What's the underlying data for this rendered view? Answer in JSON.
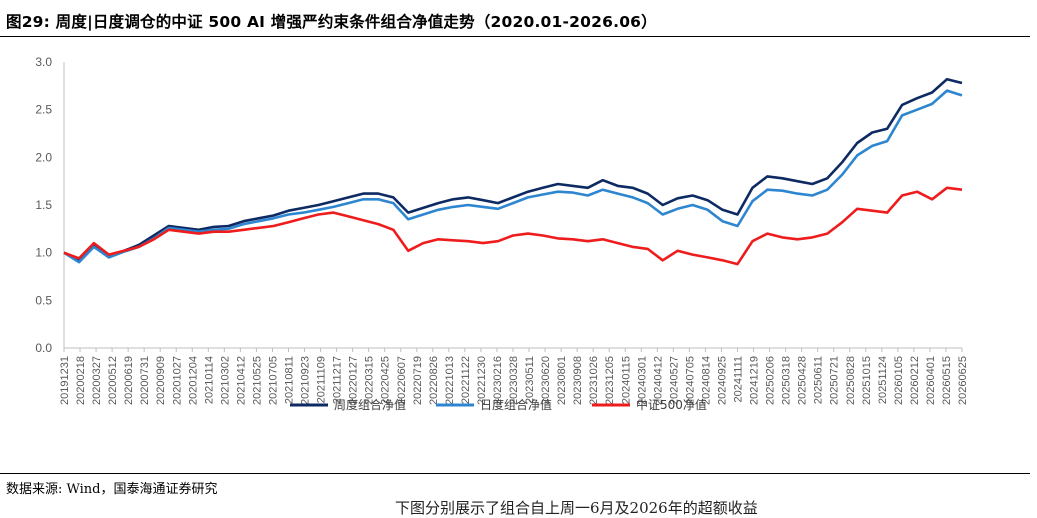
{
  "figure": {
    "title": "图29:  周度|日度调仓的中证 500 AI 增强严约束条件组合净值走势（2020.01-2026.06）",
    "source": "数据来源:  Wind，国泰海通证券研究",
    "footer_partial": "下图分别展示了组合自上周一6月及2026年的超额收益"
  },
  "chart_data": {
    "type": "line",
    "title": "",
    "xlabel": "",
    "ylabel": "",
    "ylim": [
      0.0,
      3.0
    ],
    "yticks": [
      "0.0",
      "0.5",
      "1.0",
      "1.5",
      "2.0",
      "2.5",
      "3.0"
    ],
    "x_tick_labels": [
      "20191231",
      "20200218",
      "20200327",
      "20200512",
      "20200619",
      "20200731",
      "20200909",
      "20201027",
      "20201204",
      "20210114",
      "20210302",
      "20210412",
      "20210525",
      "20210705",
      "20210811",
      "20210923",
      "20211109",
      "20211217",
      "20220127",
      "20220315",
      "20220425",
      "20220607",
      "20220719",
      "20220826",
      "20221013",
      "20221122",
      "20221230",
      "20230216",
      "20230328",
      "20230511",
      "20230620",
      "20230801",
      "20230908",
      "20231026",
      "20231205",
      "20240115",
      "20240301",
      "20240412",
      "20240527",
      "20240705",
      "20240814",
      "20240925",
      "20241111",
      "20241219",
      "20250206",
      "20250318",
      "20250428",
      "20250611",
      "20250721",
      "20250828",
      "20251015",
      "20251124",
      "20260105",
      "20260212",
      "20260401",
      "20260515",
      "20260625"
    ],
    "legend_position": "bottom-center",
    "grid": false,
    "series": [
      {
        "name": "周度组合净值",
        "color": "#0d2a63",
        "values": [
          1.0,
          0.92,
          1.08,
          0.96,
          1.02,
          1.08,
          1.18,
          1.28,
          1.26,
          1.24,
          1.27,
          1.28,
          1.33,
          1.36,
          1.39,
          1.44,
          1.47,
          1.5,
          1.54,
          1.58,
          1.62,
          1.62,
          1.58,
          1.42,
          1.47,
          1.52,
          1.56,
          1.58,
          1.55,
          1.52,
          1.58,
          1.64,
          1.68,
          1.72,
          1.7,
          1.68,
          1.76,
          1.7,
          1.68,
          1.62,
          1.5,
          1.57,
          1.6,
          1.55,
          1.45,
          1.4,
          1.68,
          1.8,
          1.78,
          1.75,
          1.72,
          1.78,
          1.95,
          2.15,
          2.26,
          2.3,
          2.55,
          2.62,
          2.68,
          2.82,
          2.78
        ]
      },
      {
        "name": "日度组合净值",
        "color": "#2e86d0",
        "values": [
          1.0,
          0.9,
          1.06,
          0.95,
          1.01,
          1.06,
          1.15,
          1.26,
          1.24,
          1.22,
          1.24,
          1.25,
          1.3,
          1.33,
          1.36,
          1.4,
          1.42,
          1.45,
          1.48,
          1.52,
          1.56,
          1.56,
          1.52,
          1.35,
          1.4,
          1.45,
          1.48,
          1.5,
          1.48,
          1.46,
          1.52,
          1.58,
          1.61,
          1.64,
          1.63,
          1.6,
          1.66,
          1.62,
          1.58,
          1.52,
          1.4,
          1.46,
          1.5,
          1.45,
          1.33,
          1.28,
          1.54,
          1.66,
          1.65,
          1.62,
          1.6,
          1.66,
          1.82,
          2.02,
          2.12,
          2.17,
          2.44,
          2.5,
          2.56,
          2.7,
          2.65
        ]
      },
      {
        "name": "中证500净值",
        "color": "#ee1c1c",
        "values": [
          1.0,
          0.94,
          1.1,
          0.98,
          1.02,
          1.06,
          1.14,
          1.24,
          1.22,
          1.2,
          1.22,
          1.22,
          1.24,
          1.26,
          1.28,
          1.32,
          1.36,
          1.4,
          1.42,
          1.38,
          1.34,
          1.3,
          1.24,
          1.02,
          1.1,
          1.14,
          1.13,
          1.12,
          1.1,
          1.12,
          1.18,
          1.2,
          1.18,
          1.15,
          1.14,
          1.12,
          1.14,
          1.1,
          1.06,
          1.04,
          0.92,
          1.02,
          0.98,
          0.95,
          0.92,
          0.88,
          1.12,
          1.2,
          1.16,
          1.14,
          1.16,
          1.2,
          1.32,
          1.46,
          1.44,
          1.42,
          1.6,
          1.64,
          1.56,
          1.68,
          1.66
        ]
      }
    ]
  }
}
